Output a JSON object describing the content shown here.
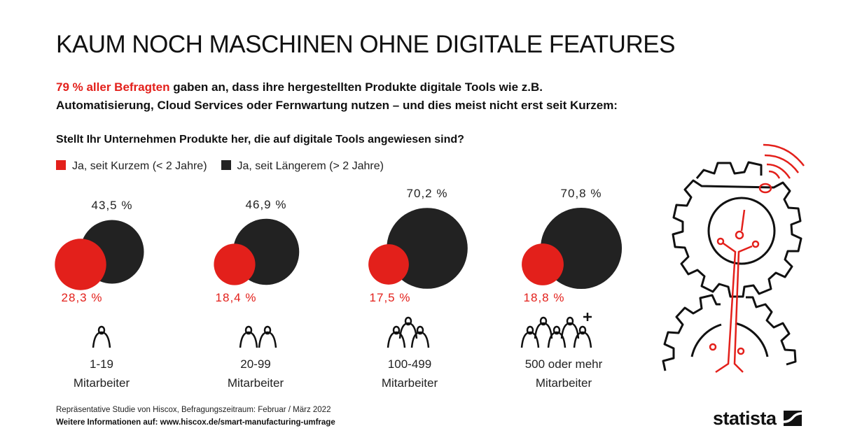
{
  "title": "KAUM NOCH MASCHINEN OHNE DIGITALE FEATURES",
  "subtitle": {
    "highlight": "79 % aller Befragten",
    "rest_line1": " gaben an, dass ihre hergestellten Produkte digitale Tools wie z.B.",
    "line2": "Automatisierung, Cloud Services oder Fernwartung nutzen – und dies meist nicht erst seit Kurzem:"
  },
  "question": "Stellt Ihr Unternehmen Produkte her, die auf digitale Tools angewiesen sind?",
  "colors": {
    "recent": "#e3201b",
    "longer": "#222222"
  },
  "chart_data": {
    "type": "bubble",
    "legend_position": "top-left",
    "categories": [
      "1-19 Mitarbeiter",
      "20-99 Mitarbeiter",
      "100-499 Mitarbeiter",
      "500 oder mehr Mitarbeiter"
    ],
    "category_lines": [
      [
        "1-19",
        "Mitarbeiter"
      ],
      [
        "20-99",
        "Mitarbeiter"
      ],
      [
        "100-499",
        "Mitarbeiter"
      ],
      [
        "500 oder mehr",
        "Mitarbeiter"
      ]
    ],
    "icons": [
      "one-person-icon",
      "two-people-icon",
      "three-people-icon",
      "many-people-plus-icon"
    ],
    "series": [
      {
        "name": "Ja, seit Kurzem (< 2 Jahre)",
        "color": "#e3201b",
        "values": [
          28.3,
          18.4,
          17.5,
          18.8
        ],
        "labels": [
          "28,3 %",
          "18,4 %",
          "17,5 %",
          "18,8 %"
        ]
      },
      {
        "name": "Ja, seit Längerem (> 2 Jahre)",
        "color": "#222222",
        "values": [
          43.5,
          46.9,
          70.2,
          70.8
        ],
        "labels": [
          "43,5 %",
          "46,9 %",
          "70,2 %",
          "70,8 %"
        ]
      }
    ]
  },
  "footer": {
    "source": "Repräsentative Studie von Hiscox, Befragungszeitraum: Februar / März 2022",
    "more_info": "Weitere Informationen auf: www.hiscox.de/smart-manufacturing-umfrage"
  },
  "logo": "statista"
}
